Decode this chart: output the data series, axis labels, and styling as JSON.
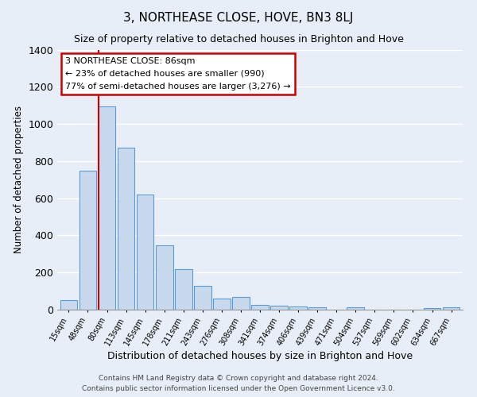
{
  "title": "3, NORTHEASE CLOSE, HOVE, BN3 8LJ",
  "subtitle": "Size of property relative to detached houses in Brighton and Hove",
  "xlabel": "Distribution of detached houses by size in Brighton and Hove",
  "ylabel": "Number of detached properties",
  "bar_color": "#c9d9ed",
  "bar_edge_color": "#5b9bd5",
  "bg_color": "#e8eef7",
  "grid_color": "#ffffff",
  "categories": [
    "15sqm",
    "48sqm",
    "80sqm",
    "113sqm",
    "145sqm",
    "178sqm",
    "211sqm",
    "243sqm",
    "276sqm",
    "308sqm",
    "341sqm",
    "374sqm",
    "406sqm",
    "439sqm",
    "471sqm",
    "504sqm",
    "537sqm",
    "569sqm",
    "602sqm",
    "634sqm",
    "667sqm"
  ],
  "values": [
    50,
    750,
    1095,
    870,
    620,
    345,
    220,
    130,
    60,
    70,
    25,
    22,
    18,
    12,
    0,
    12,
    0,
    0,
    0,
    10,
    12
  ],
  "ylim": [
    0,
    1400
  ],
  "yticks": [
    0,
    200,
    400,
    600,
    800,
    1000,
    1200,
    1400
  ],
  "red_line_index": 2,
  "annotation_title": "3 NORTHEASE CLOSE: 86sqm",
  "annotation_line1": "← 23% of detached houses are smaller (990)",
  "annotation_line2": "77% of semi-detached houses are larger (3,276) →",
  "annotation_box_color": "#ffffff",
  "annotation_border_color": "#cc0000",
  "red_line_color": "#cc0000",
  "footer1": "Contains HM Land Registry data © Crown copyright and database right 2024.",
  "footer2": "Contains public sector information licensed under the Open Government Licence v3.0."
}
